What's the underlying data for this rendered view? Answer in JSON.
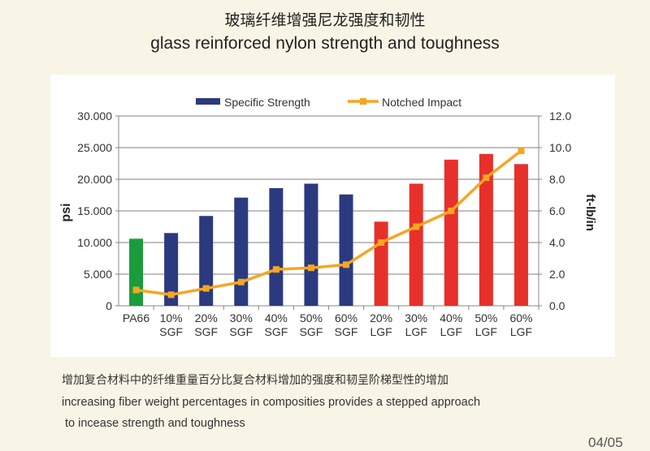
{
  "title_cn": "玻璃纤维增强尼龙强度和韧性",
  "title_en": "glass reinforced nylon strength and toughness",
  "chart_data": {
    "type": "bar",
    "categories": [
      [
        "PA66",
        ""
      ],
      [
        "10%",
        "SGF"
      ],
      [
        "20%",
        "SGF"
      ],
      [
        "30%",
        "SGF"
      ],
      [
        "40%",
        "SGF"
      ],
      [
        "50%",
        "SGF"
      ],
      [
        "60%",
        "SGF"
      ],
      [
        "20%",
        "LGF"
      ],
      [
        "30%",
        "LGF"
      ],
      [
        "40%",
        "LGF"
      ],
      [
        "50%",
        "LGF"
      ],
      [
        "60%",
        "LGF"
      ]
    ],
    "ylabel": "psi",
    "y2label": "ft-lb/in",
    "ylim": [
      0,
      30000
    ],
    "y2lim": [
      0,
      12
    ],
    "yticks": [
      "0",
      "5.000",
      "10.000",
      "15.000",
      "20.000",
      "25.000",
      "30.000"
    ],
    "y2ticks": [
      "0.0",
      "2.0",
      "4.0",
      "6.0",
      "8.0",
      "10.0",
      "12.0"
    ],
    "grid": true,
    "legend_position": "top",
    "series": [
      {
        "name": "Specific Strength",
        "type": "bar",
        "color": "#2b3a7e",
        "values": [
          10600,
          11500,
          14200,
          17100,
          18600,
          19300,
          17600,
          13300,
          19300,
          23100,
          24000,
          22400
        ],
        "bar_colors": [
          "#1a9c3c",
          "#2b3a7e",
          "#2b3a7e",
          "#2b3a7e",
          "#2b3a7e",
          "#2b3a7e",
          "#2b3a7e",
          "#e8302a",
          "#e8302a",
          "#e8302a",
          "#e8302a",
          "#e8302a"
        ]
      },
      {
        "name": "Notched Impact",
        "type": "line",
        "axis": "right",
        "color": "#f5a623",
        "values": [
          1.0,
          0.7,
          1.1,
          1.5,
          2.3,
          2.4,
          2.6,
          4.0,
          5.0,
          6.0,
          8.1,
          9.8
        ]
      }
    ]
  },
  "caption_cn": "增加复合材料中的纤维重量百分比复合材料增加的强度和韧呈阶梯型性的增加",
  "caption_en_1": "increasing fiber weight percentages in composities provides a stepped approach",
  "caption_en_2": " to incease strength and toughness",
  "page": "04/05"
}
